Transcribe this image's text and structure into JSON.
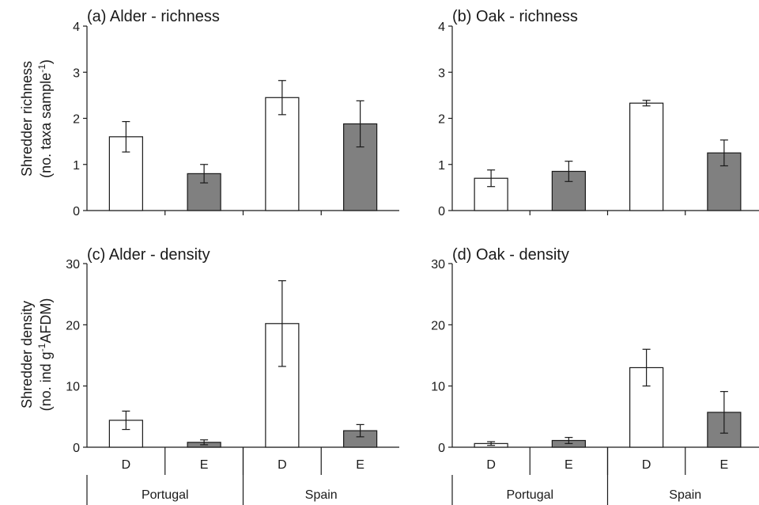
{
  "colors": {
    "D": "#ffffff",
    "E": "#808080",
    "stroke": "#1a1a1a"
  },
  "y_titles": {
    "richness_line1": "Shredder richness",
    "richness_line2": "(no. taxa sample",
    "richness_sup": "-1",
    "richness_close": ")",
    "density_line1": "Shredder density",
    "density_line2a": "(no. ind g",
    "density_sup": "-1",
    "density_line2b": "AFDM)"
  },
  "chart_data": [
    {
      "type": "bar",
      "title": "(a)  Alder - richness",
      "ylim": [
        0,
        4
      ],
      "yticks": [
        0,
        1,
        2,
        3,
        4
      ],
      "categories": [
        "D",
        "E",
        "D",
        "E"
      ],
      "groups": [
        "Portugal",
        "Spain"
      ],
      "show_groups": false,
      "values": [
        1.6,
        0.8,
        2.45,
        1.88
      ],
      "errors": [
        0.33,
        0.2,
        0.37,
        0.5
      ],
      "fills": [
        "D",
        "E",
        "D",
        "E"
      ]
    },
    {
      "type": "bar",
      "title": "(b) Oak - richness",
      "ylim": [
        0,
        4
      ],
      "yticks": [
        0,
        1,
        2,
        3,
        4
      ],
      "categories": [
        "D",
        "E",
        "D",
        "E"
      ],
      "groups": [
        "Portugal",
        "Spain"
      ],
      "show_groups": false,
      "values": [
        0.7,
        0.85,
        2.33,
        1.25
      ],
      "errors": [
        0.18,
        0.22,
        0.06,
        0.28
      ],
      "fills": [
        "D",
        "E",
        "D",
        "E"
      ]
    },
    {
      "type": "bar",
      "title": "(c)  Alder - density",
      "ylim": [
        0,
        30
      ],
      "yticks": [
        0,
        10,
        20,
        30
      ],
      "categories": [
        "D",
        "E",
        "D",
        "E"
      ],
      "groups": [
        "Portugal",
        "Spain"
      ],
      "show_groups": true,
      "values": [
        4.4,
        0.8,
        20.2,
        2.7
      ],
      "errors": [
        1.5,
        0.4,
        7.0,
        1.0
      ],
      "fills": [
        "D",
        "E",
        "D",
        "E"
      ]
    },
    {
      "type": "bar",
      "title": "(d) Oak - density",
      "ylim": [
        0,
        30
      ],
      "yticks": [
        0,
        10,
        20,
        30
      ],
      "categories": [
        "D",
        "E",
        "D",
        "E"
      ],
      "groups": [
        "Portugal",
        "Spain"
      ],
      "show_groups": true,
      "values": [
        0.6,
        1.1,
        13.0,
        5.7
      ],
      "errors": [
        0.3,
        0.5,
        3.0,
        3.4
      ],
      "fills": [
        "D",
        "E",
        "D",
        "E"
      ]
    }
  ]
}
